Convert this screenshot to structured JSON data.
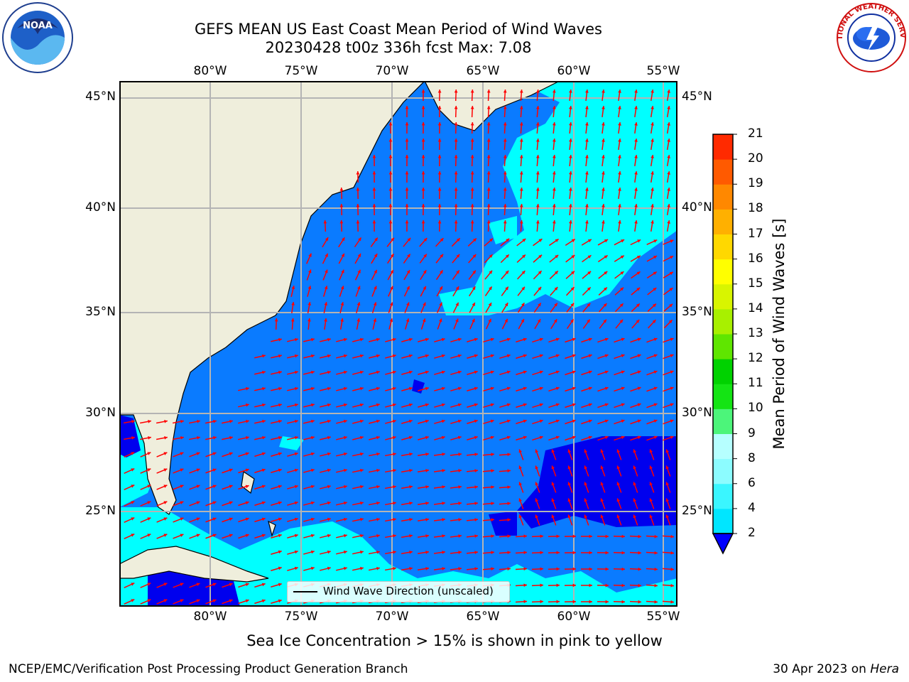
{
  "title_line1": "GEFS MEAN US East Coast Mean Period of Wind Waves",
  "title_line2": "20230428 t00z 336h fcst   Max: 7.08",
  "lon_labels": [
    "80°W",
    "75°W",
    "70°W",
    "65°W",
    "60°W",
    "55°W"
  ],
  "lat_labels": [
    "45°N",
    "40°N",
    "35°N",
    "30°N",
    "25°N"
  ],
  "colorbar": {
    "title": "Mean Period of Wind Waves [s]",
    "ticks": [
      "2",
      "4",
      "6",
      "8",
      "9",
      "10",
      "11",
      "12",
      "13",
      "14",
      "15",
      "16",
      "17",
      "18",
      "19",
      "20",
      "21"
    ],
    "colors": [
      "#0a7bff",
      "#00e6ff",
      "#3af6ff",
      "#8cfcff",
      "#b6ffff",
      "#4cf57a",
      "#14e414",
      "#00d200",
      "#5fe600",
      "#a8f000",
      "#d8f500",
      "#ffff00",
      "#ffd800",
      "#ffb000",
      "#ff8800",
      "#ff5a00",
      "#ff2a00",
      "#ff0000"
    ],
    "extend_color": "#0000ff"
  },
  "colors": {
    "land": "#efeedc",
    "level_2_4": "#0a7bff",
    "level_below_2": "#0000ee",
    "level_4_6": "#00ffff",
    "arrow": "#ff0000",
    "grid": "#b4b4b4"
  },
  "legend_text": "Wind Wave Direction (unscaled)",
  "footer_caption": "Sea Ice Concentration > 15% is shown in pink to yellow",
  "footer_left": "NCEP/EMC/Verification Post Processing Product Generation Branch",
  "footer_right_date": "30 Apr 2023 on ",
  "footer_right_machine": "Hera",
  "noaa_logo_text": "NOAA",
  "nws_logo_text": "NATIONAL WEATHER SERVICE"
}
